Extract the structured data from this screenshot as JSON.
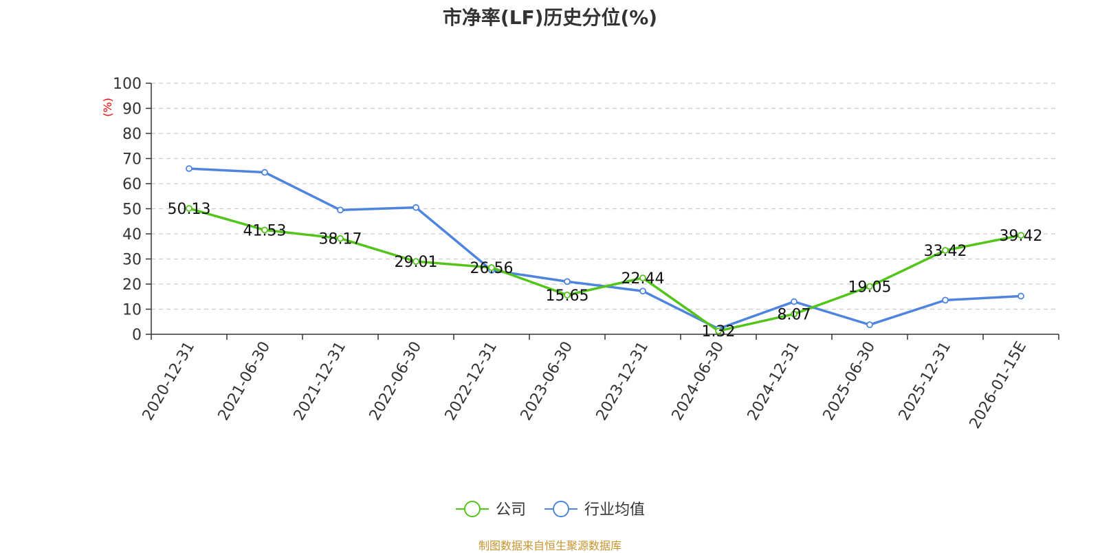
{
  "chart_data": {
    "type": "line",
    "title": "市净率(LF)历史分位(%)",
    "ylabel": "(%)",
    "ylim": [
      0,
      100
    ],
    "yticks": [
      0,
      10,
      20,
      30,
      40,
      50,
      60,
      70,
      80,
      90,
      100
    ],
    "categories": [
      "2020-12-31",
      "2021-06-30",
      "2021-12-31",
      "2022-06-30",
      "2022-12-31",
      "2023-06-30",
      "2023-12-31",
      "2024-06-30",
      "2024-12-31",
      "2025-06-30",
      "2025-12-31",
      "2026-01-15E"
    ],
    "grid": true,
    "legend_position": "bottom",
    "series": [
      {
        "name": "公司",
        "color": "#52c41a",
        "values": [
          50.13,
          41.53,
          38.17,
          29.01,
          26.56,
          15.65,
          22.44,
          1.32,
          8.07,
          19.05,
          33.42,
          39.42
        ],
        "labels": [
          "50.13",
          "41.53",
          "38.17",
          "29.01",
          "26.56",
          "15.65",
          "22.44",
          "1.32",
          "8.07",
          "19.05",
          "33.42",
          "39.42"
        ]
      },
      {
        "name": "行业均值",
        "color": "#4e84de",
        "values": [
          66,
          64.5,
          49.5,
          50.5,
          25.5,
          21,
          17.2,
          2.2,
          13,
          3.8,
          13.6,
          15.2
        ]
      }
    ]
  },
  "source_note": "制图数据来自恒生聚源数据库",
  "colors": {
    "axis_label": "#ff0000",
    "source_note": "#c7952f",
    "grid": "#cccccc",
    "axis": "#333333",
    "text": "#333333"
  }
}
